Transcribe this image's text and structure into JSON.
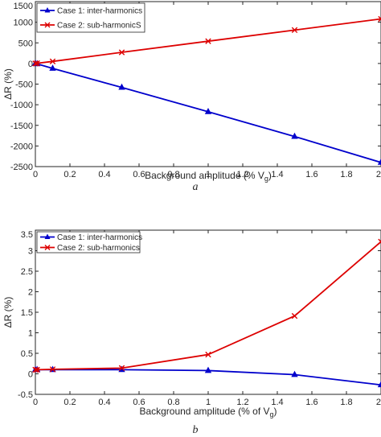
{
  "chart_data": [
    {
      "type": "line",
      "caption": "a",
      "xlabel": "Background amplitude (% V",
      "xlabel_sub": "g",
      "xlabel_tail": ")",
      "ylabel": "ΔR (%)",
      "xlim": [
        0,
        2
      ],
      "ylim": [
        -2500,
        1500
      ],
      "xticks": [
        0,
        0.2,
        0.4,
        0.6,
        0.8,
        1,
        1.2,
        1.4,
        1.6,
        1.8,
        2
      ],
      "xtick_labels": [
        "0",
        "0.2",
        "0.4",
        "0.6",
        "0.8",
        "1",
        "1.2",
        "1.4",
        "1.6",
        "1.8",
        "2"
      ],
      "yticks": [
        -2500,
        -2000,
        -1500,
        -1000,
        -500,
        0,
        500,
        1000,
        1500
      ],
      "ytick_labels": [
        "-2500",
        "-2000",
        "-1500",
        "-1000",
        "-500",
        "0",
        "500",
        "1000",
        "1500"
      ],
      "grid": false,
      "legend_position": "top-left",
      "series": [
        {
          "name": "Case 1: inter-harmonics",
          "color": "#0000cc",
          "marker": "triangle",
          "x": [
            0,
            0.01,
            0.1,
            0.5,
            1,
            1.5,
            2
          ],
          "y": [
            0,
            -10,
            -120,
            -580,
            -1170,
            -1770,
            -2400
          ]
        },
        {
          "name": "Case 2: sub-harmonicS",
          "color": "#dd0000",
          "marker": "x",
          "x": [
            0,
            0.01,
            0.1,
            0.5,
            1,
            1.5,
            2
          ],
          "y": [
            0,
            5,
            50,
            270,
            540,
            810,
            1080
          ]
        }
      ]
    },
    {
      "type": "line",
      "caption": "b",
      "xlabel": "Background amplitude (% of V",
      "xlabel_sub": "g",
      "xlabel_tail": ")",
      "ylabel": "ΔR (%)",
      "xlim": [
        0,
        2
      ],
      "ylim": [
        -0.5,
        3.5
      ],
      "xticks": [
        0,
        0.2,
        0.4,
        0.6,
        0.8,
        1,
        1.2,
        1.4,
        1.6,
        1.8,
        2
      ],
      "xtick_labels": [
        "0",
        "0.2",
        "0.4",
        "0.6",
        "0.8",
        "1",
        "1.2",
        "1.4",
        "1.6",
        "1.8",
        "2"
      ],
      "yticks": [
        -0.5,
        0,
        0.5,
        1,
        1.5,
        2,
        2.5,
        3,
        3.5
      ],
      "ytick_labels": [
        "-0.5",
        "0",
        "0.5",
        "1",
        "1.5",
        "2",
        "2.5",
        "3",
        "3.5"
      ],
      "grid": false,
      "legend_position": "top-left",
      "series": [
        {
          "name": "Case 1: inter-harmonics",
          "color": "#0000cc",
          "marker": "triangle",
          "x": [
            0,
            0.01,
            0.1,
            0.5,
            1,
            1.5,
            2
          ],
          "y": [
            0.1,
            0.1,
            0.1,
            0.1,
            0.08,
            -0.02,
            -0.27
          ]
        },
        {
          "name": "Case 2: sub-harmonics",
          "color": "#dd0000",
          "marker": "x",
          "x": [
            0,
            0.01,
            0.1,
            0.5,
            1,
            1.5,
            2
          ],
          "y": [
            0.1,
            0.1,
            0.11,
            0.14,
            0.47,
            1.41,
            3.22
          ]
        }
      ]
    }
  ]
}
